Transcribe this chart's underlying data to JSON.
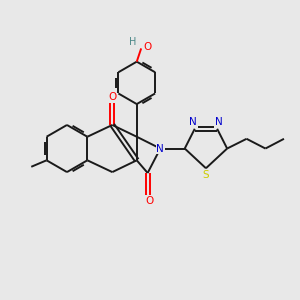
{
  "background_color": "#e8e8e8",
  "bond_color": "#1a1a1a",
  "atom_colors": {
    "O": "#ff0000",
    "N": "#0000cc",
    "S": "#cccc00",
    "H_teal": "#4a8888",
    "C": "#1a1a1a"
  },
  "figsize": [
    3.0,
    3.0
  ],
  "dpi": 100,
  "lw": 1.4,
  "doff": 0.07
}
